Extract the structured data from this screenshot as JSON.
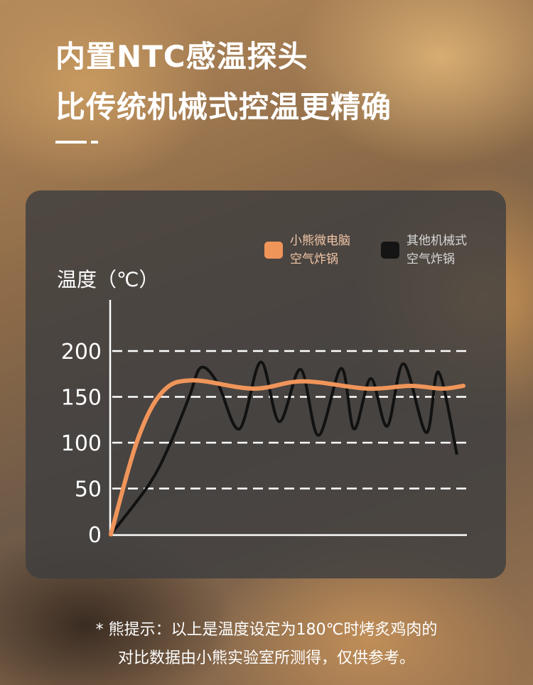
{
  "title": {
    "line1": "内置NTC感温探头",
    "line2": "比传统机械式控温更精确"
  },
  "chart_data": {
    "type": "line",
    "ylabel": "温度（℃）",
    "xlabel": "",
    "ylim": [
      0,
      200
    ],
    "yticks": [
      "200",
      "150",
      "100",
      "50",
      "0"
    ],
    "grid": "dashed horizontal",
    "legend_placement": "top-right",
    "series": [
      {
        "name": "小熊微电脑空气炸锅",
        "label_lines": [
          "小熊微电脑",
          "空气炸锅"
        ],
        "color": "#f0955a",
        "points": [
          [
            0,
            0
          ],
          [
            7.4,
            102
          ],
          [
            14.4,
            155
          ],
          [
            22.8,
            168
          ],
          [
            40,
            159
          ],
          [
            54,
            167
          ],
          [
            72,
            159
          ],
          [
            84,
            162
          ],
          [
            93,
            159
          ],
          [
            99,
            162
          ]
        ]
      },
      {
        "name": "其他机械式空气炸锅",
        "label_lines": [
          "其他机械式",
          "空气炸锅"
        ],
        "color": "#111111",
        "points": [
          [
            0,
            0
          ],
          [
            11,
            56
          ],
          [
            17,
            102
          ],
          [
            22,
            150
          ],
          [
            25.3,
            182
          ],
          [
            30,
            165
          ],
          [
            36.1,
            115
          ],
          [
            42.1,
            188
          ],
          [
            47.3,
            123
          ],
          [
            53.3,
            180
          ],
          [
            58.3,
            108
          ],
          [
            64.7,
            181
          ],
          [
            68.3,
            115
          ],
          [
            73,
            170
          ],
          [
            77.6,
            118
          ],
          [
            82.2,
            186
          ],
          [
            88.6,
            111
          ],
          [
            92,
            177
          ],
          [
            97.2,
            87
          ]
        ]
      }
    ]
  },
  "note": {
    "line1": "* 熊提示：以上是温度设定为180℃时烤炙鸡肉的",
    "line2": "对比数据由小熊实验室所测得，仅供参考。"
  }
}
